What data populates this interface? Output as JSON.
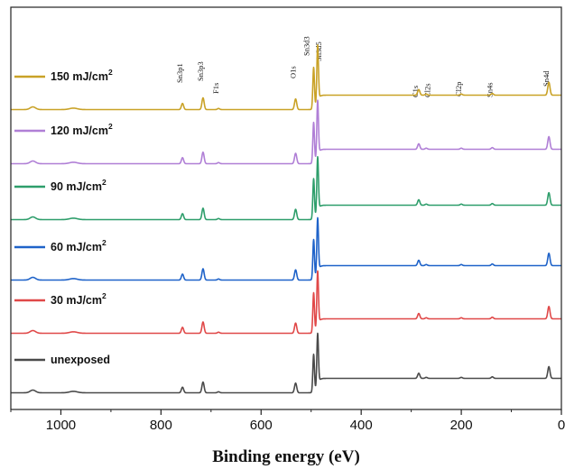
{
  "chart_data": {
    "type": "line",
    "title": "",
    "xlabel": "Binding energy (eV)",
    "ylabel": "",
    "xlim": [
      1100,
      0
    ],
    "x_ticks": [
      1000,
      800,
      600,
      400,
      200,
      0
    ],
    "x_tick_labels": [
      "1000",
      "800",
      "600",
      "400",
      "200",
      "0"
    ],
    "grid": false,
    "legend_position": "left, each entry above its trace",
    "peaks": [
      {
        "label": "Sn3p1",
        "x": 757,
        "rel": 0.11
      },
      {
        "label": "Sn3p3",
        "x": 716,
        "rel": 0.21
      },
      {
        "label": "F1s",
        "x": 685,
        "rel": 0.02
      },
      {
        "label": "O1s",
        "x": 531,
        "rel": 0.19
      },
      {
        "label": "Sn3d3",
        "x": 495,
        "rel": 0.74
      },
      {
        "label": "Sn3d5",
        "x": 487,
        "rel": 1.0
      },
      {
        "label": "C1s",
        "x": 285,
        "rel": 0.1
      },
      {
        "label": "Cl2s",
        "x": 270,
        "rel": 0.02
      },
      {
        "label": "Cl2p",
        "x": 200,
        "rel": 0.02
      },
      {
        "label": "Sn4s",
        "x": 138,
        "rel": 0.03
      },
      {
        "label": "Sn4d",
        "x": 25,
        "rel": 0.23
      }
    ],
    "series": [
      {
        "name": "150 mJ/cm²",
        "name_main": "150 mJ/cm",
        "name_sup": "2",
        "color": "#C9A227"
      },
      {
        "name": "120 mJ/cm²",
        "name_main": "120 mJ/cm",
        "name_sup": "2",
        "color": "#B07FD6"
      },
      {
        "name": "90 mJ/cm²",
        "name_main": "90 mJ/cm",
        "name_sup": "2",
        "color": "#2E9E6B"
      },
      {
        "name": "60 mJ/cm²",
        "name_main": "60 mJ/cm",
        "name_sup": "2",
        "color": "#1F63C9"
      },
      {
        "name": "30 mJ/cm²",
        "name_main": "30 mJ/cm",
        "name_sup": "2",
        "color": "#E04848"
      },
      {
        "name": "unexposed",
        "name_main": "unexposed",
        "name_sup": "",
        "color": "#4A4A4A"
      }
    ]
  }
}
